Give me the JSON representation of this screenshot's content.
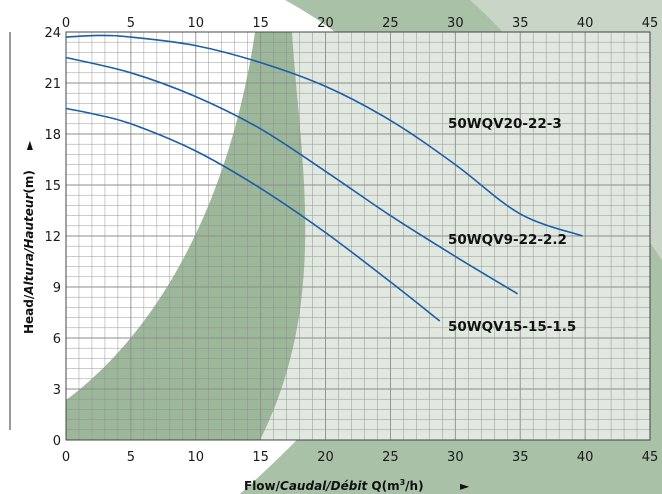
{
  "chart_data": {
    "type": "line",
    "title": "",
    "xlabel": {
      "prefix": "Flow/",
      "italic": "Caudal/Débit",
      "suffix": " Q(m",
      "sup": "3",
      "end": "/h)",
      "arrow": "►"
    },
    "ylabel": {
      "prefix": "Head/",
      "italic": "Altura/Hauteur",
      "suffix": "(m)",
      "arrow": "►"
    },
    "xlim": [
      0,
      45
    ],
    "ylim": [
      0,
      24
    ],
    "x_ticks": [
      "0",
      "5",
      "10",
      "15",
      "20",
      "25",
      "30",
      "35",
      "40",
      "45"
    ],
    "y_ticks": [
      "0",
      "3",
      "6",
      "9",
      "12",
      "15",
      "18",
      "21",
      "24"
    ],
    "grid": true,
    "colors": {
      "line": "#1a5fa8",
      "grid": "#8d8d8d",
      "background": "#dfe6df",
      "band": "#9db79a"
    },
    "series": [
      {
        "name": "50WQV20-22-3",
        "x": [
          0,
          2.5,
          5,
          10,
          15,
          20,
          25,
          30,
          35,
          39.8
        ],
        "y": [
          23.7,
          23.8,
          23.7,
          23.2,
          22.2,
          20.8,
          18.8,
          16.2,
          13.3,
          12.0
        ]
      },
      {
        "name": "50WQV9-22-2.2",
        "x": [
          0,
          5,
          10,
          15,
          20,
          25,
          30,
          34.8
        ],
        "y": [
          22.5,
          21.6,
          20.2,
          18.3,
          15.8,
          13.2,
          10.8,
          8.6
        ]
      },
      {
        "name": "50WQV15-15-1.5",
        "x": [
          0,
          2,
          5,
          10,
          15,
          20,
          25,
          28.8
        ],
        "y": [
          19.5,
          19.2,
          18.6,
          17.0,
          14.8,
          12.2,
          9.3,
          7.0
        ]
      }
    ]
  }
}
